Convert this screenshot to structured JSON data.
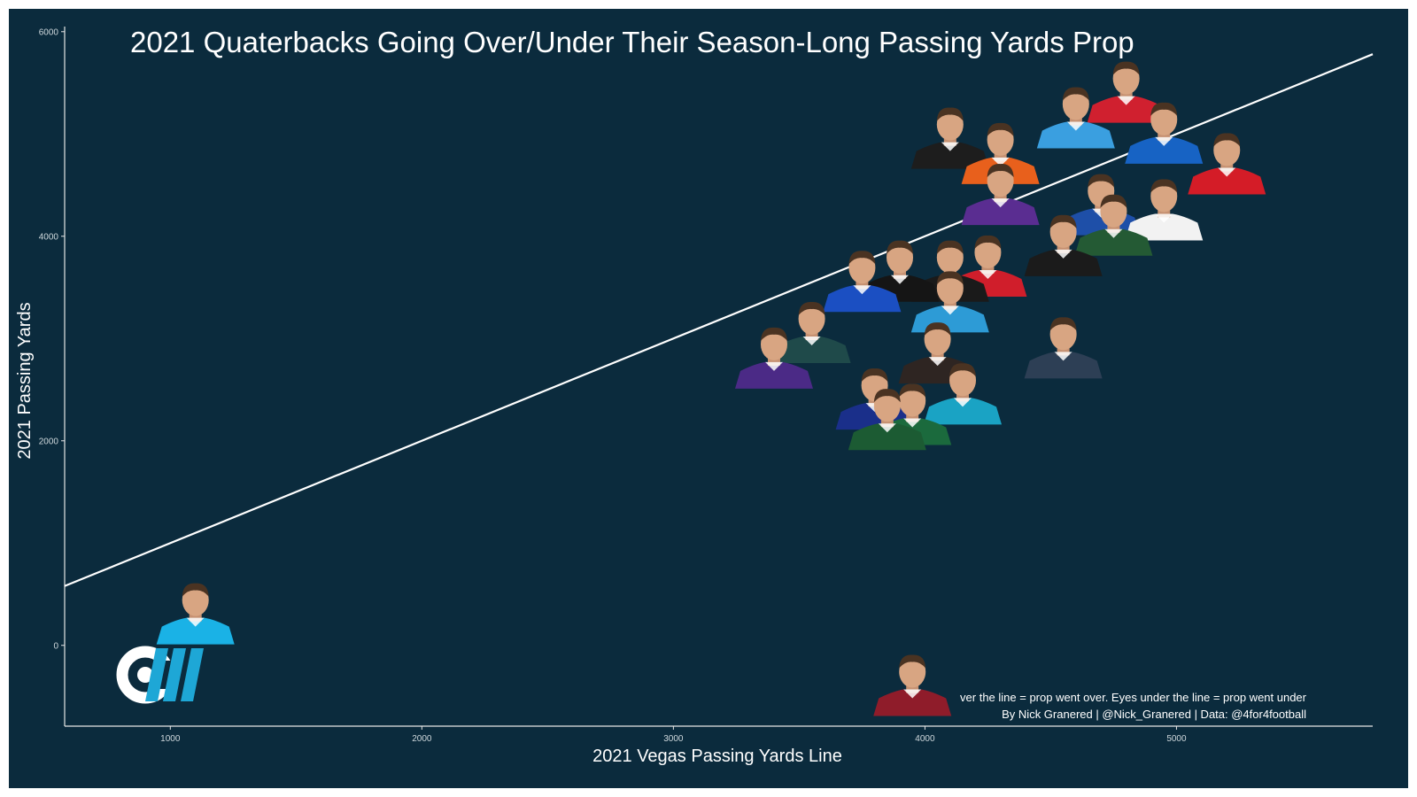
{
  "colors": {
    "background": "#0b2b3d",
    "axis": "#e6e6e6",
    "line": "#ffffff",
    "text": "#ffffff",
    "logo_white": "#ffffff",
    "logo_blue": "#1ea7d6"
  },
  "caption": {
    "line1": "ver the line = prop went over. Eyes under the line = prop went under",
    "line2": "By Nick Granered | @Nick_Granered | Data: @4for4football"
  },
  "logo": {
    "icon": "cw-logo-icon"
  },
  "chart_data": {
    "type": "scatter",
    "title": "2021 Quaterbacks Going Over/Under Their Season-Long Passing Yards Prop",
    "xlabel": "2021 Vegas Passing Yards Line",
    "ylabel": "2021 Passing Yards",
    "xlim": [
      580,
      5780
    ],
    "ylim": [
      -790,
      6050
    ],
    "xticks": [
      1000,
      2000,
      3000,
      4000,
      5000
    ],
    "yticks": [
      0,
      2000,
      4000,
      6000
    ],
    "grid": false,
    "reference_line": {
      "type": "y=x",
      "description": "line = prop"
    },
    "marker": "player headshot",
    "points": [
      {
        "x": 4800,
        "y": 5300,
        "jersey": "#d0202f"
      },
      {
        "x": 4600,
        "y": 5050,
        "jersey": "#3a9fe0"
      },
      {
        "x": 4950,
        "y": 4900,
        "jersey": "#1763c4"
      },
      {
        "x": 4100,
        "y": 4850,
        "jersey": "#1d1d1d"
      },
      {
        "x": 4300,
        "y": 4700,
        "jersey": "#e8601c"
      },
      {
        "x": 5200,
        "y": 4600,
        "jersey": "#d41c27"
      },
      {
        "x": 4300,
        "y": 4300,
        "jersey": "#5a2d91"
      },
      {
        "x": 4700,
        "y": 4200,
        "jersey": "#1e4fa8"
      },
      {
        "x": 4950,
        "y": 4150,
        "jersey": "#f2f2f2"
      },
      {
        "x": 4750,
        "y": 4000,
        "jersey": "#245a34"
      },
      {
        "x": 4550,
        "y": 3800,
        "jersey": "#1b1b1b"
      },
      {
        "x": 4250,
        "y": 3600,
        "jersey": "#d01e2b"
      },
      {
        "x": 4100,
        "y": 3550,
        "jersey": "#1a1a1a"
      },
      {
        "x": 3900,
        "y": 3550,
        "jersey": "#151515"
      },
      {
        "x": 3750,
        "y": 3450,
        "jersey": "#1b4fc2"
      },
      {
        "x": 4100,
        "y": 3250,
        "jersey": "#2d9bd6"
      },
      {
        "x": 3550,
        "y": 2950,
        "jersey": "#1f4a4a"
      },
      {
        "x": 4550,
        "y": 2800,
        "jersey": "#2d3f55"
      },
      {
        "x": 4050,
        "y": 2750,
        "jersey": "#2e2522"
      },
      {
        "x": 3400,
        "y": 2700,
        "jersey": "#4b2a86"
      },
      {
        "x": 3800,
        "y": 2300,
        "jersey": "#1a2f8a"
      },
      {
        "x": 4150,
        "y": 2350,
        "jersey": "#1aa3c4"
      },
      {
        "x": 3950,
        "y": 2150,
        "jersey": "#1b6a3d"
      },
      {
        "x": 3850,
        "y": 2100,
        "jersey": "#1c5b33"
      },
      {
        "x": 1100,
        "y": 200,
        "jersey": "#1ab2e6"
      },
      {
        "x": 3950,
        "y": -500,
        "jersey": "#8f1c2a"
      }
    ]
  }
}
